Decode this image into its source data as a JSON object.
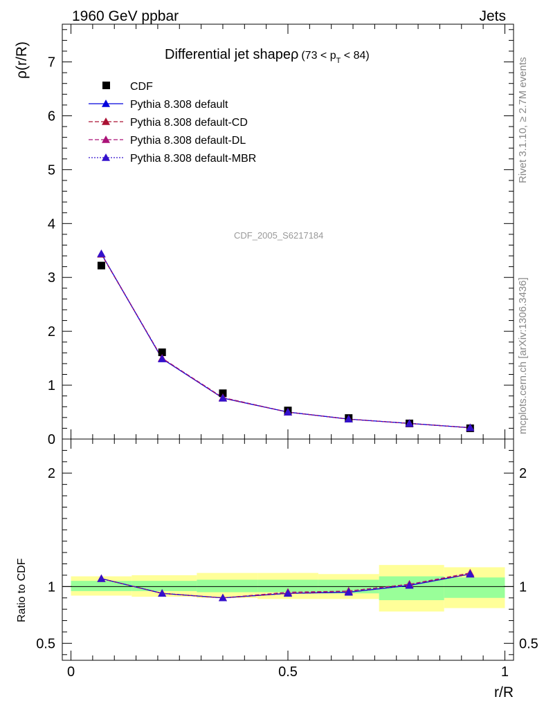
{
  "header": {
    "left": "1960 GeV ppbar",
    "right": "Jets"
  },
  "side_text": {
    "rivet": "Rivet 3.1.10, ≥ 2.7M events",
    "mcplots": "mcplots.cern.ch [arXiv:1306.3436]"
  },
  "watermark": "CDF_2005_S6217184",
  "chart_data": [
    {
      "type": "scatter",
      "title_main": "Differential jet shapeρ",
      "title_range": "(73 < p",
      "title_sub": "T",
      "title_end": " < 84)",
      "ylabel": "ρ(r/R)",
      "xlim": [
        -0.02,
        1.02
      ],
      "ylim": [
        0,
        7.7
      ],
      "y_ticks": [
        0,
        1,
        2,
        3,
        4,
        5,
        6,
        7
      ],
      "y_tick_labels": [
        "0",
        "1",
        "2",
        "3",
        "4",
        "5",
        "6",
        "7"
      ],
      "x": [
        0.07,
        0.21,
        0.35,
        0.5,
        0.64,
        0.78,
        0.92
      ],
      "series": [
        {
          "name": "CDF",
          "kind": "data",
          "color": "#000000",
          "marker": "square",
          "values": [
            3.22,
            1.61,
            0.85,
            0.53,
            0.39,
            0.29,
            0.2
          ]
        },
        {
          "name": "Pythia 8.308 default",
          "kind": "mc",
          "color": "#0000dd",
          "dash": "solid",
          "marker": "triangle",
          "values": [
            3.44,
            1.49,
            0.76,
            0.5,
            0.37,
            0.29,
            0.21
          ]
        },
        {
          "name": "Pythia 8.308 default-CD",
          "kind": "mc",
          "color": "#aa1133",
          "dash": "6,3",
          "marker": "triangle",
          "values": [
            3.43,
            1.5,
            0.76,
            0.5,
            0.37,
            0.29,
            0.21
          ]
        },
        {
          "name": "Pythia 8.308 default-DL",
          "kind": "mc",
          "color": "#aa1177",
          "dash": "6,3",
          "marker": "triangle",
          "values": [
            3.44,
            1.5,
            0.77,
            0.5,
            0.37,
            0.29,
            0.21
          ]
        },
        {
          "name": "Pythia 8.308 default-MBR",
          "kind": "mc",
          "color": "#3311cc",
          "dash": "2,2",
          "marker": "triangle",
          "values": [
            3.44,
            1.49,
            0.76,
            0.5,
            0.37,
            0.29,
            0.21
          ]
        }
      ],
      "legend_position": "top-left"
    },
    {
      "type": "scatter",
      "ylabel": "Ratio to CDF",
      "xlabel": "r/R",
      "xlim": [
        -0.02,
        1.02
      ],
      "ylim": [
        0.35,
        2.3
      ],
      "y_ticks": [
        0.5,
        1,
        2
      ],
      "y_tick_labels": [
        "0.5",
        "1",
        "2"
      ],
      "x_ticks": [
        0,
        0.5,
        1
      ],
      "x_tick_labels": [
        "0",
        "0.5",
        "1"
      ],
      "bands": [
        {
          "x0": 0.0,
          "x1": 0.14,
          "green": [
            0.96,
            1.05
          ],
          "yellow": [
            0.92,
            1.09
          ]
        },
        {
          "x0": 0.14,
          "x1": 0.29,
          "green": [
            0.96,
            1.05
          ],
          "yellow": [
            0.91,
            1.1
          ]
        },
        {
          "x0": 0.29,
          "x1": 0.43,
          "green": [
            0.95,
            1.06
          ],
          "yellow": [
            0.9,
            1.12
          ]
        },
        {
          "x0": 0.43,
          "x1": 0.57,
          "green": [
            0.95,
            1.06
          ],
          "yellow": [
            0.89,
            1.12
          ]
        },
        {
          "x0": 0.57,
          "x1": 0.71,
          "green": [
            0.94,
            1.06
          ],
          "yellow": [
            0.89,
            1.11
          ]
        },
        {
          "x0": 0.71,
          "x1": 0.86,
          "green": [
            0.88,
            1.09
          ],
          "yellow": [
            0.78,
            1.19
          ]
        },
        {
          "x0": 0.86,
          "x1": 1.0,
          "green": [
            0.9,
            1.08
          ],
          "yellow": [
            0.81,
            1.17
          ]
        }
      ],
      "x": [
        0.07,
        0.21,
        0.35,
        0.5,
        0.64,
        0.78,
        0.92
      ],
      "series": [
        {
          "name": "Pythia 8.308 default",
          "color": "#0000dd",
          "dash": "solid",
          "values": [
            1.07,
            0.94,
            0.9,
            0.94,
            0.95,
            1.01,
            1.11
          ]
        },
        {
          "name": "Pythia 8.308 default-CD",
          "color": "#aa1133",
          "dash": "6,3",
          "values": [
            1.07,
            0.94,
            0.9,
            0.94,
            0.96,
            1.02,
            1.11
          ]
        },
        {
          "name": "Pythia 8.308 default-DL",
          "color": "#aa1177",
          "dash": "6,3",
          "values": [
            1.07,
            0.94,
            0.9,
            0.95,
            0.96,
            1.02,
            1.12
          ]
        },
        {
          "name": "Pythia 8.308 default-MBR",
          "color": "#3311cc",
          "dash": "2,2",
          "values": [
            1.07,
            0.94,
            0.9,
            0.94,
            0.95,
            1.01,
            1.11
          ]
        }
      ]
    }
  ]
}
